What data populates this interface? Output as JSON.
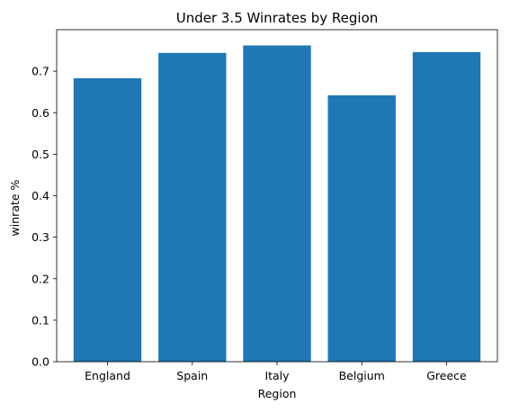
{
  "chart_data": {
    "type": "bar",
    "title": "Under 3.5 Winrates by Region",
    "xlabel": "Region",
    "ylabel": "winrate %",
    "categories": [
      "England",
      "Spain",
      "Italy",
      "Belgium",
      "Greece"
    ],
    "values": [
      0.683,
      0.744,
      0.762,
      0.642,
      0.746
    ],
    "ylim": [
      0,
      0.8
    ],
    "yticks": [
      "0.0",
      "0.1",
      "0.2",
      "0.3",
      "0.4",
      "0.5",
      "0.6",
      "0.7"
    ],
    "grid": false,
    "bar_color": "#1f77b4"
  }
}
